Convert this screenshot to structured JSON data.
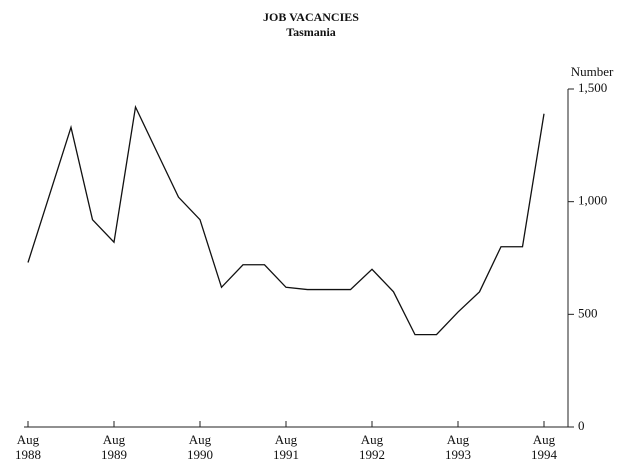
{
  "chart_data": {
    "type": "line",
    "title": "JOB VACANCIES",
    "subtitle": "Tasmania",
    "y_axis_label": "Number",
    "categories": [
      "Aug 1988",
      null,
      null,
      null,
      "Aug 1989",
      null,
      null,
      null,
      "Aug 1990",
      null,
      null,
      null,
      "Aug 1991",
      null,
      null,
      null,
      "Aug 1992",
      null,
      null,
      null,
      "Aug 1993",
      null,
      null,
      null,
      "Aug 1994"
    ],
    "series": [
      {
        "name": "Job vacancies",
        "color": "#111111",
        "values": [
          730,
          1030,
          1330,
          920,
          820,
          1420,
          1220,
          1020,
          920,
          620,
          720,
          720,
          620,
          610,
          610,
          610,
          700,
          600,
          410,
          410,
          510,
          600,
          800,
          800,
          1390
        ]
      }
    ],
    "ylim": [
      0,
      1500
    ],
    "yticks": [
      0,
      500,
      {
        "value": 1000,
        "label": "1,000"
      },
      {
        "value": 1500,
        "label": "1,500"
      }
    ]
  }
}
